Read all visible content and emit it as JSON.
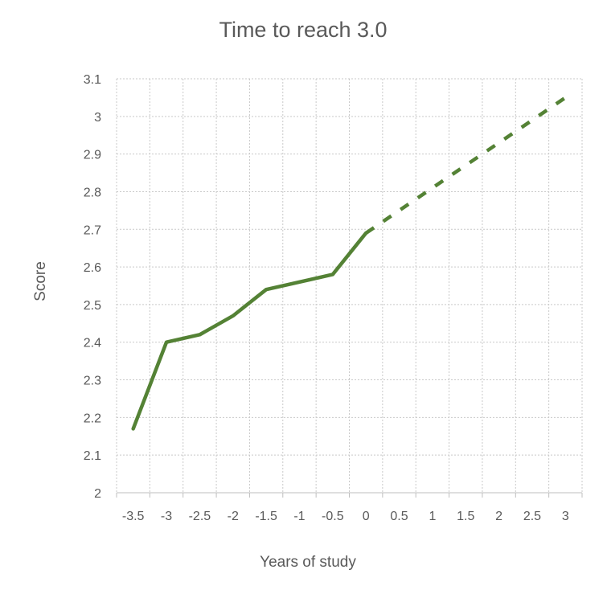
{
  "chart_data": {
    "type": "line",
    "title": "Time to reach 3.0",
    "xlabel": "Years of study",
    "ylabel": "Score",
    "x_tick_labels": [
      "-3.5",
      "-3",
      "-2.5",
      "-2",
      "-1.5",
      "-1",
      "-0.5",
      "0",
      "0.5",
      "1",
      "1.5",
      "2",
      "2.5",
      "3"
    ],
    "y_tick_labels": [
      "2",
      "2.1",
      "2.2",
      "2.3",
      "2.4",
      "2.5",
      "2.6",
      "2.7",
      "2.8",
      "2.9",
      "3",
      "3.1"
    ],
    "xlim": [
      -3.75,
      3.25
    ],
    "ylim": [
      2,
      3.1
    ],
    "grid": true,
    "legend": "none",
    "color": "#548235",
    "series": [
      {
        "style": "solid",
        "points": [
          {
            "x": -3.5,
            "y": 2.17
          },
          {
            "x": -3,
            "y": 2.4
          },
          {
            "x": -2.5,
            "y": 2.42
          },
          {
            "x": -2,
            "y": 2.47
          },
          {
            "x": -1.5,
            "y": 2.54
          },
          {
            "x": -0.5,
            "y": 2.58
          },
          {
            "x": 0,
            "y": 2.69
          }
        ]
      },
      {
        "style": "dashed",
        "points": [
          {
            "x": 0,
            "y": 2.69
          },
          {
            "x": 3,
            "y": 3.05
          }
        ]
      }
    ]
  }
}
